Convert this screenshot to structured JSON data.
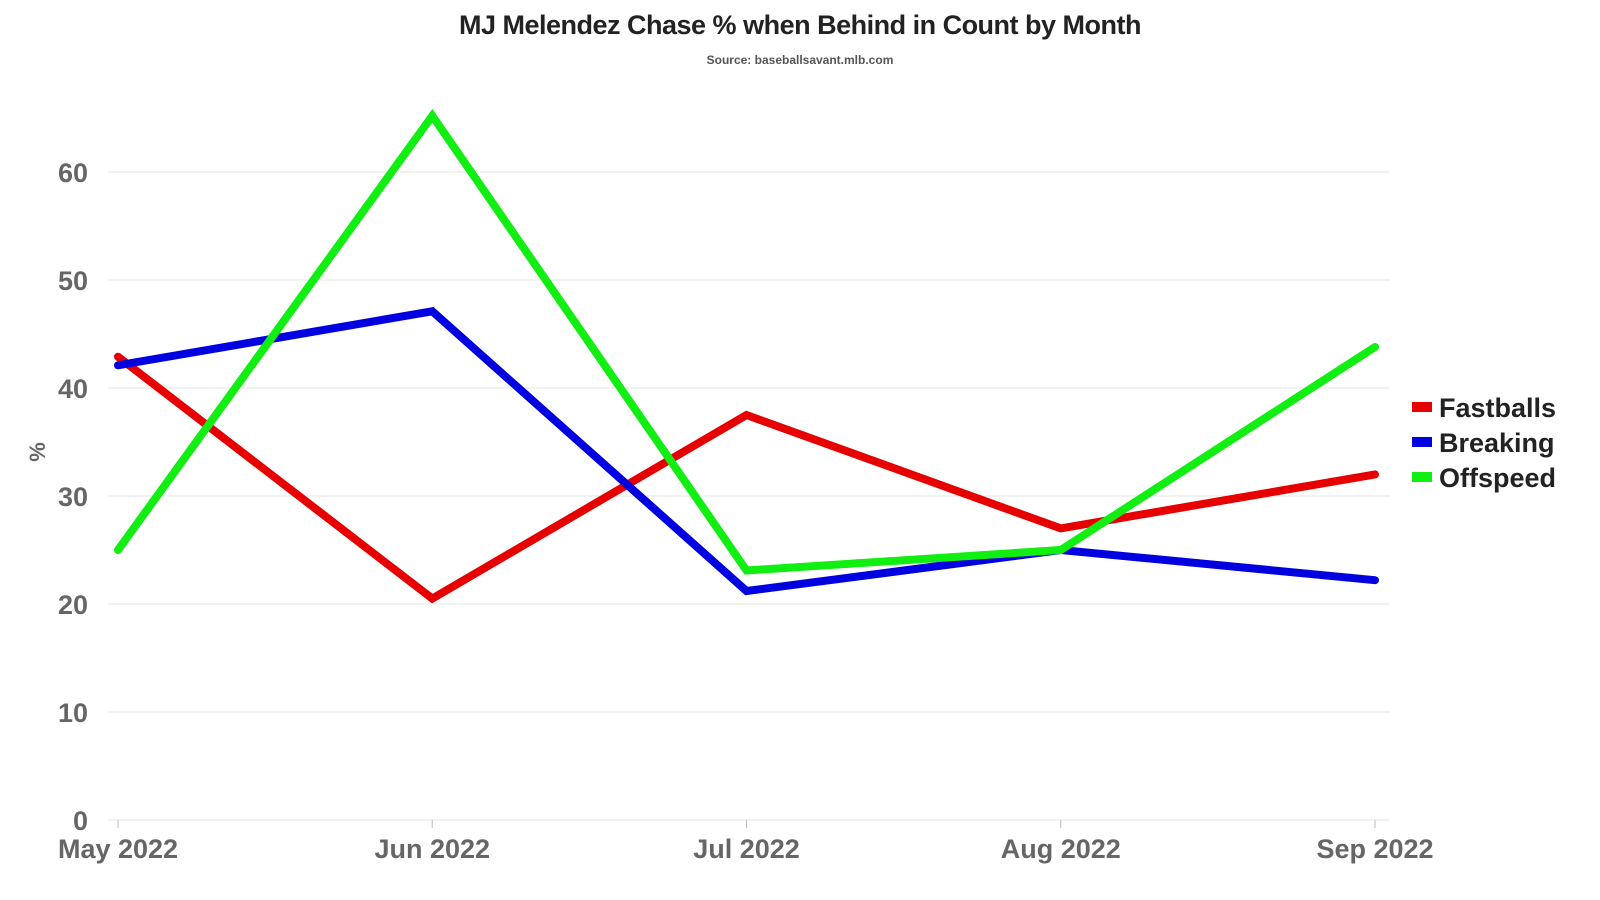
{
  "chart_data": {
    "type": "line",
    "title": "MJ Melendez Chase % when Behind in Count by Month",
    "subtitle": "Source: baseballsavant.mlb.com",
    "ylabel": "%",
    "xlabel": "",
    "categories": [
      "May 2022",
      "Jun 2022",
      "Jul 2022",
      "Aug 2022",
      "Sep 2022"
    ],
    "ylim": [
      0,
      65.5
    ],
    "yticks": [
      0,
      10,
      20,
      30,
      40,
      50,
      60
    ],
    "grid": true,
    "legend_position": "right",
    "series": [
      {
        "name": "Fastballs",
        "color": "#e60000",
        "values": [
          42.9,
          20.5,
          37.5,
          27.0,
          32.0
        ]
      },
      {
        "name": "Breaking",
        "color": "#0000e0",
        "values": [
          42.1,
          47.1,
          21.2,
          25.0,
          22.2
        ]
      },
      {
        "name": "Offspeed",
        "color": "#11ee11",
        "values": [
          25.0,
          65.2,
          23.1,
          25.0,
          43.8
        ]
      }
    ]
  }
}
